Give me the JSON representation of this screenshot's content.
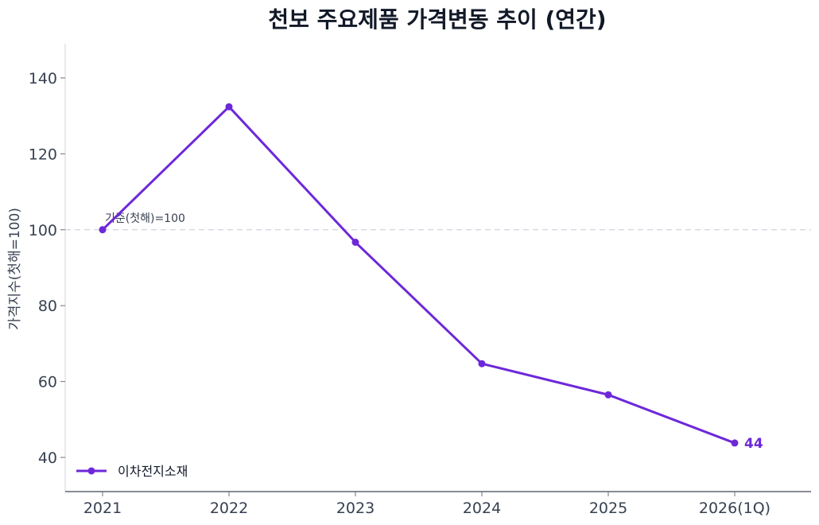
{
  "chart_data": {
    "type": "line",
    "title": "천보 주요제품 가격변동 추이 (연간)",
    "xlabel": "",
    "ylabel": "가격지수(첫해=100)",
    "categories": [
      "2021",
      "2022",
      "2023",
      "2024",
      "2025",
      "2026(1Q)"
    ],
    "series": [
      {
        "name": "이차전지소재",
        "color": "#6d28d9",
        "values": [
          100,
          132.4,
          96.7,
          64.7,
          56.5,
          43.8
        ]
      }
    ],
    "ylim": [
      31,
      149
    ],
    "yticks": [
      40,
      60,
      80,
      100,
      120,
      140
    ],
    "reference_line": {
      "value": 100,
      "label": "기준(첫해)=100"
    },
    "end_label": "44",
    "grid": false,
    "legend": "lower-left"
  }
}
